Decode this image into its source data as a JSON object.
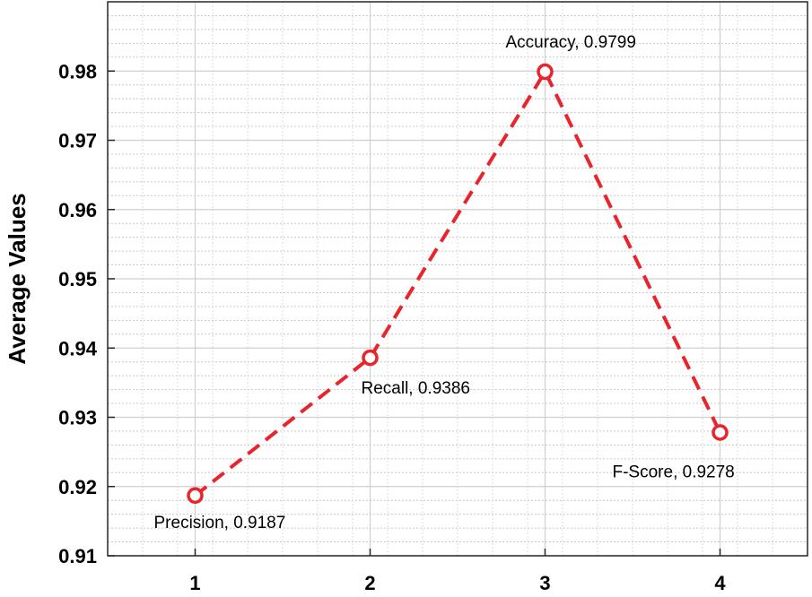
{
  "chart_data": {
    "type": "line",
    "title": "",
    "xlabel": "",
    "ylabel": "Average Values",
    "x": [
      1,
      2,
      3,
      4
    ],
    "xlim": [
      0.5,
      4.5
    ],
    "ylim": [
      0.91,
      0.99
    ],
    "xticks": [
      1,
      2,
      3,
      4
    ],
    "yticks": [
      0.91,
      0.92,
      0.93,
      0.94,
      0.95,
      0.96,
      0.97,
      0.98
    ],
    "grid": true,
    "minor_grid": true,
    "series": [
      {
        "values": [
          0.9187,
          0.9386,
          0.9799,
          0.9278
        ],
        "color": "#e8242c",
        "line_style": "dashed",
        "marker": "circle"
      }
    ],
    "annotations": [
      {
        "x": 1,
        "y": 0.9187,
        "text": "Precision, 0.9187"
      },
      {
        "x": 2,
        "y": 0.9386,
        "text": "Recall, 0.9386"
      },
      {
        "x": 3,
        "y": 0.9799,
        "text": "Accuracy, 0.9799"
      },
      {
        "x": 4,
        "y": 0.9278,
        "text": "F-Score, 0.9278"
      }
    ]
  }
}
